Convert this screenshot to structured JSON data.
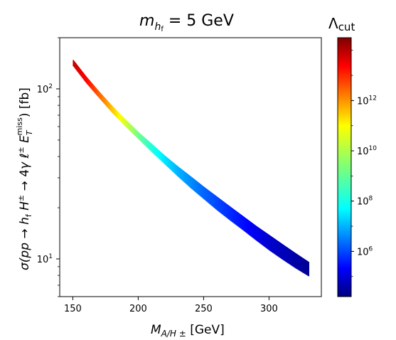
{
  "chart_data": {
    "type": "scatter",
    "title": {
      "main": "m",
      "sub": "h",
      "subsub": "f",
      "rest": " = 5 GeV"
    },
    "xlabel": {
      "main": "M",
      "sub": "A/H ±",
      "rest": "  [GeV]"
    },
    "ylabel": "σ(pp→h_f H^± → 4γℓ^± E_T^miss) [fb]",
    "ylabel_parts": {
      "pre": "σ(",
      "p1": "p",
      "p2": "p",
      "arrow1": " → ",
      "h": "h",
      "hsub": "f",
      "H": " H",
      "Hsup": "±",
      "arrow2": " → 4",
      "gamma": "γ",
      "ell": " ℓ",
      "ellsup": "±",
      "E": " E",
      "Esub": "T",
      "Esup": "miss",
      "post": ")  [fb]"
    },
    "xlim": [
      140,
      340
    ],
    "ylim": [
      6,
      200
    ],
    "xscale": "linear",
    "yscale": "log",
    "xticks": [
      150,
      200,
      250,
      300
    ],
    "xtick_labels": [
      "150",
      "200",
      "250",
      "300"
    ],
    "yticks": [
      10,
      100
    ],
    "ytick_labels": [
      "10",
      "1",
      "10",
      "2"
    ],
    "grid": false,
    "band": {
      "x": [
        150,
        160,
        170,
        180,
        190,
        200,
        210,
        220,
        230,
        240,
        250,
        260,
        270,
        280,
        290,
        300,
        310,
        320,
        330
      ],
      "y_upper": [
        148,
        118,
        96,
        79,
        66,
        55.5,
        47.5,
        40.5,
        35,
        30.5,
        26.5,
        23.2,
        20.3,
        17.8,
        15.6,
        13.8,
        12.2,
        10.8,
        9.6
      ],
      "y_lower": [
        136,
        108,
        88,
        72,
        60,
        50.5,
        42.5,
        36,
        30.5,
        26,
        22.4,
        19.3,
        16.8,
        14.7,
        12.8,
        11.2,
        9.9,
        8.8,
        7.9
      ],
      "color_log10_lambda": [
        13.8,
        13.2,
        12.2,
        11.2,
        10.2,
        9.2,
        8.4,
        7.8,
        7.3,
        6.9,
        6.5,
        6.2,
        5.9,
        5.6,
        5.3,
        5.0,
        4.8,
        4.6,
        4.4
      ]
    },
    "colorbar": {
      "label_main": "Λ",
      "label_sub": "cut",
      "colormap": "jet",
      "log10_range": [
        4.2,
        14.5
      ],
      "ticks_log10": [
        6,
        8,
        10,
        12
      ],
      "tick_bases": [
        "10",
        "10",
        "10",
        "10"
      ],
      "tick_exps": [
        "6",
        "8",
        "10",
        "12"
      ]
    }
  }
}
